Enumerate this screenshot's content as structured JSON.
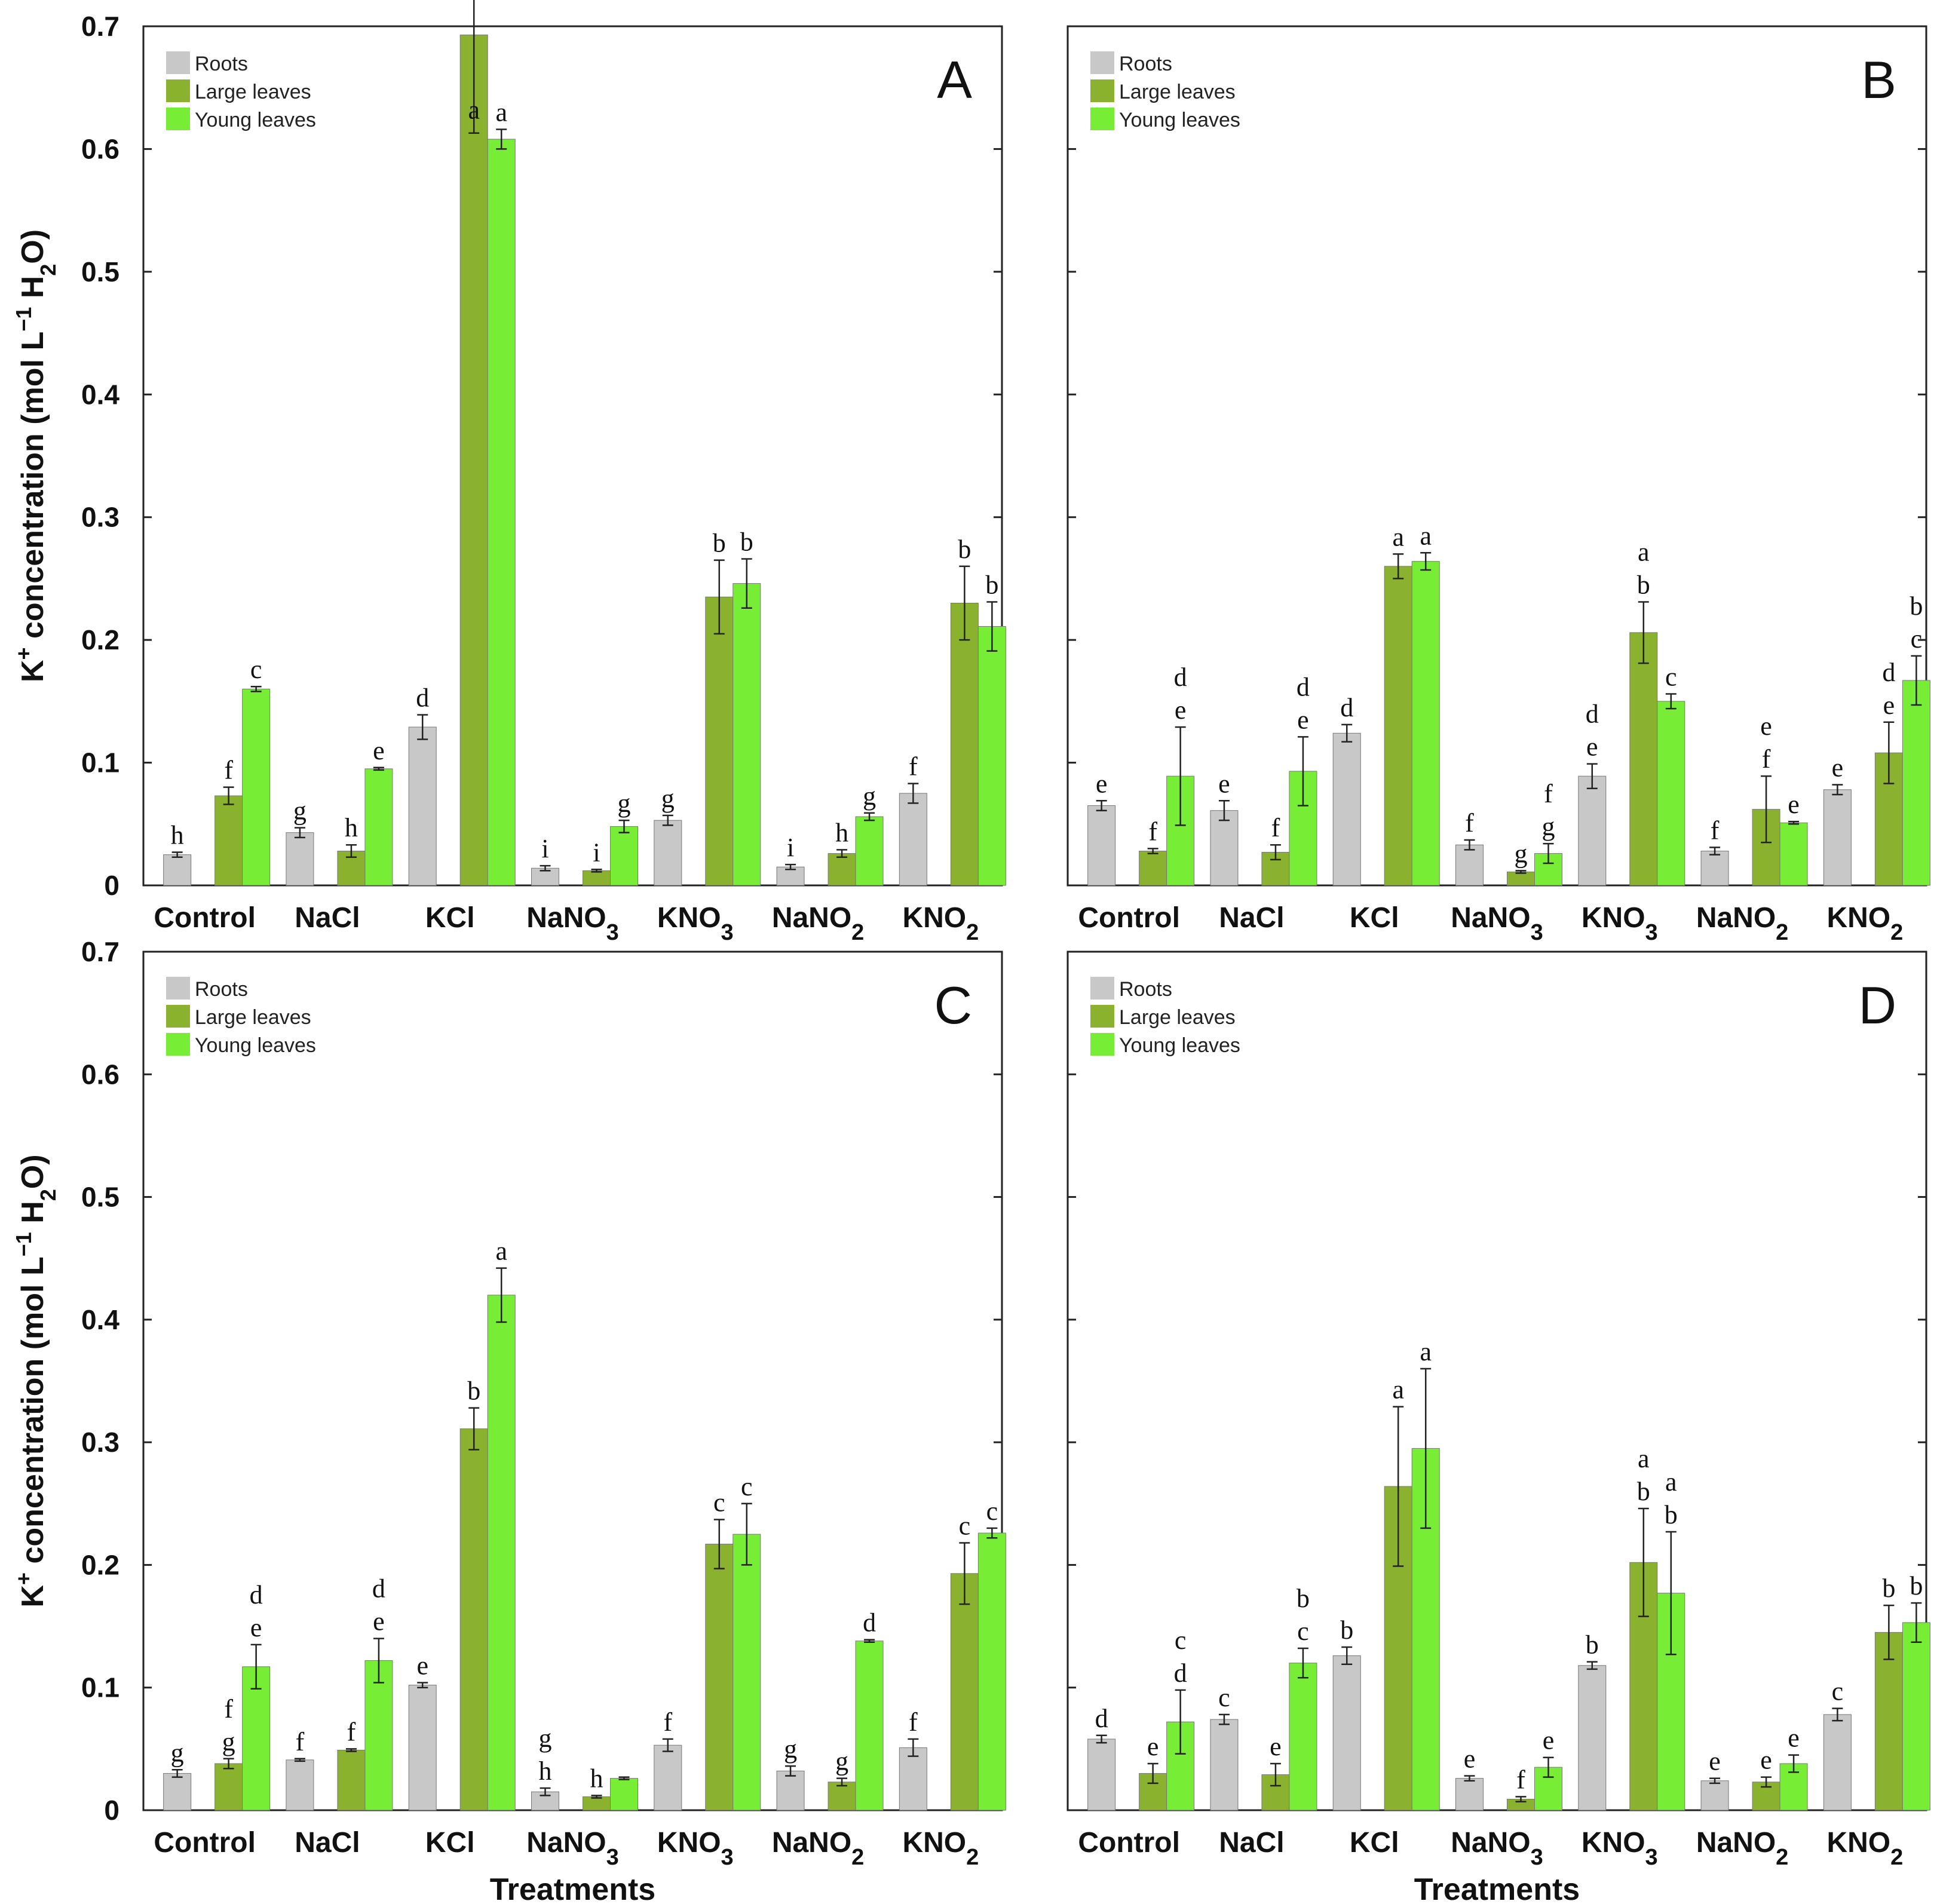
{
  "chart_data": {
    "type": "bar",
    "categories": [
      "Control",
      "NaCl",
      "KCl",
      "NaNO3",
      "KNO3",
      "NaNO2",
      "KNO2"
    ],
    "category_display": [
      {
        "base": "Control",
        "sub": ""
      },
      {
        "base": "NaCl",
        "sub": ""
      },
      {
        "base": "KCl",
        "sub": ""
      },
      {
        "base": "NaNO",
        "sub": "3"
      },
      {
        "base": "KNO",
        "sub": "3"
      },
      {
        "base": "NaNO",
        "sub": "2"
      },
      {
        "base": "KNO",
        "sub": "2"
      }
    ],
    "xlabel": "Treatments",
    "ylabel": {
      "main": "K",
      "sup": "+",
      "rest": " concentration (mol L",
      "sup2": "−1",
      "rest2": " H",
      "sub": "2",
      "end": "O)"
    },
    "ylim": [
      0,
      0.7
    ],
    "yticks": [
      0,
      0.1,
      0.2,
      0.3,
      0.4,
      0.5,
      0.6,
      0.7
    ],
    "ytick_labels": [
      "0",
      "0.1",
      "0.2",
      "0.3",
      "0.4",
      "0.5",
      "0.6",
      "0.7"
    ],
    "legend_position": "top-left",
    "series_names": [
      "Roots",
      "Large leaves",
      "Young leaves"
    ],
    "colors": {
      "Roots": "#c8c8c8",
      "Large leaves": "#8ab22e",
      "Young leaves": "#77ee35"
    },
    "panels": [
      {
        "label": "A",
        "series": [
          {
            "name": "Roots",
            "values": [
              0.025,
              0.043,
              0.129,
              0.014,
              0.053,
              0.015,
              0.075
            ],
            "errors": [
              0.002,
              0.004,
              0.01,
              0.002,
              0.004,
              0.002,
              0.008
            ],
            "letters": [
              [
                "h"
              ],
              [
                "g"
              ],
              [
                "d"
              ],
              [
                "i"
              ],
              [
                "g"
              ],
              [
                "i"
              ],
              [
                "f"
              ]
            ]
          },
          {
            "name": "Large leaves",
            "values": [
              0.073,
              0.028,
              0.693,
              0.012,
              0.235,
              0.026,
              0.23
            ],
            "errors": [
              0.007,
              0.005,
              0.08,
              0.001,
              0.03,
              0.003,
              0.03
            ],
            "letters": [
              [
                "f"
              ],
              [
                "h"
              ],
              [
                "a"
              ],
              [
                "i"
              ],
              [
                "b"
              ],
              [
                "h"
              ],
              [
                "b"
              ]
            ]
          },
          {
            "name": "Young leaves",
            "values": [
              0.16,
              0.095,
              0.608,
              0.048,
              0.246,
              0.056,
              0.211
            ],
            "errors": [
              0.002,
              0.001,
              0.008,
              0.005,
              0.02,
              0.003,
              0.02
            ],
            "letters": [
              [
                "c"
              ],
              [
                "e"
              ],
              [
                "a"
              ],
              [
                "g"
              ],
              [
                "b"
              ],
              [
                "g"
              ],
              [
                "b"
              ]
            ]
          }
        ]
      },
      {
        "label": "B",
        "series": [
          {
            "name": "Roots",
            "values": [
              0.065,
              0.061,
              0.124,
              0.033,
              0.089,
              0.028,
              0.078
            ],
            "errors": [
              0.004,
              0.008,
              0.007,
              0.004,
              0.01,
              0.003,
              0.004
            ],
            "letters": [
              [
                "e"
              ],
              [
                "e"
              ],
              [
                "d"
              ],
              [
                "f"
              ],
              [
                "d",
                "e"
              ],
              [
                "f"
              ],
              [
                "e"
              ]
            ]
          },
          {
            "name": "Large leaves",
            "values": [
              0.028,
              0.027,
              0.26,
              0.011,
              0.206,
              0.062,
              0.108
            ],
            "errors": [
              0.002,
              0.006,
              0.01,
              0.001,
              0.025,
              0.027,
              0.025
            ],
            "letters": [
              [
                "f"
              ],
              [
                "f"
              ],
              [
                "a"
              ],
              [
                "g"
              ],
              [
                "a",
                "b"
              ],
              [
                "e",
                "f"
              ],
              [
                "d",
                "e"
              ]
            ]
          },
          {
            "name": "Young leaves",
            "values": [
              0.089,
              0.093,
              0.264,
              0.026,
              0.15,
              0.051,
              0.167
            ],
            "errors": [
              0.04,
              0.028,
              0.007,
              0.008,
              0.006,
              0.001,
              0.02
            ],
            "letters": [
              [
                "d",
                "e"
              ],
              [
                "d",
                "e"
              ],
              [
                "a"
              ],
              [
                "f",
                "g"
              ],
              [
                "c"
              ],
              [
                "e"
              ],
              [
                "b",
                "c"
              ]
            ]
          }
        ]
      },
      {
        "label": "C",
        "series": [
          {
            "name": "Roots",
            "values": [
              0.03,
              0.041,
              0.102,
              0.015,
              0.053,
              0.032,
              0.051
            ],
            "errors": [
              0.003,
              0.001,
              0.002,
              0.003,
              0.005,
              0.004,
              0.007
            ],
            "letters": [
              [
                "g"
              ],
              [
                "f"
              ],
              [
                "e"
              ],
              [
                "g",
                "h"
              ],
              [
                "f"
              ],
              [
                "g"
              ],
              [
                "f"
              ]
            ]
          },
          {
            "name": "Large leaves",
            "values": [
              0.038,
              0.049,
              0.311,
              0.011,
              0.217,
              0.023,
              0.193
            ],
            "errors": [
              0.004,
              0.001,
              0.017,
              0.001,
              0.02,
              0.003,
              0.025
            ],
            "letters": [
              [
                "f",
                "g"
              ],
              [
                "f"
              ],
              [
                "b"
              ],
              [
                "h"
              ],
              [
                "c"
              ],
              [
                "g"
              ],
              [
                "c"
              ]
            ]
          },
          {
            "name": "Young leaves",
            "values": [
              0.117,
              0.122,
              0.42,
              0.026,
              0.225,
              0.138,
              0.226
            ],
            "errors": [
              0.018,
              0.018,
              0.022,
              0.001,
              0.025,
              0.001,
              0.004
            ],
            "letters": [
              [
                "d",
                "e"
              ],
              [
                "d",
                "e"
              ],
              [
                "a"
              ],
              [],
              [
                "c"
              ],
              [
                "d"
              ],
              [
                "c"
              ]
            ]
          }
        ]
      },
      {
        "label": "D",
        "series": [
          {
            "name": "Roots",
            "values": [
              0.058,
              0.074,
              0.126,
              0.026,
              0.118,
              0.024,
              0.078
            ],
            "errors": [
              0.003,
              0.004,
              0.007,
              0.002,
              0.003,
              0.002,
              0.005
            ],
            "letters": [
              [
                "d"
              ],
              [
                "c"
              ],
              [
                "b"
              ],
              [
                "e"
              ],
              [
                "b"
              ],
              [
                "e"
              ],
              [
                "c"
              ]
            ]
          },
          {
            "name": "Large leaves",
            "values": [
              0.03,
              0.029,
              0.264,
              0.009,
              0.202,
              0.023,
              0.145
            ],
            "errors": [
              0.008,
              0.009,
              0.065,
              0.002,
              0.044,
              0.004,
              0.022
            ],
            "letters": [
              [
                "e"
              ],
              [
                "e"
              ],
              [
                "a"
              ],
              [
                "f"
              ],
              [
                "a",
                "b"
              ],
              [
                "e"
              ],
              [
                "b"
              ]
            ]
          },
          {
            "name": "Young leaves",
            "values": [
              0.072,
              0.12,
              0.295,
              0.035,
              0.177,
              0.038,
              0.153
            ],
            "errors": [
              0.026,
              0.012,
              0.065,
              0.008,
              0.05,
              0.007,
              0.016
            ],
            "letters": [
              [
                "c",
                "d"
              ],
              [
                "b",
                "c"
              ],
              [
                "a"
              ],
              [
                "e"
              ],
              [
                "a",
                "b"
              ],
              [
                "e"
              ],
              [
                "b"
              ]
            ]
          }
        ]
      }
    ]
  }
}
